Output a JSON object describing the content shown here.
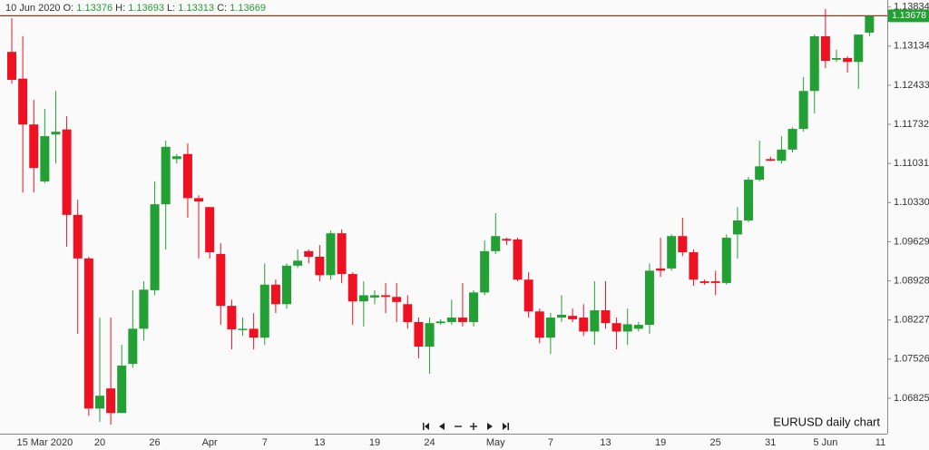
{
  "chart_data": {
    "type": "candlestick",
    "header": {
      "date": "10 Jun 2020",
      "items": [
        {
          "label": "O:",
          "value": 1.13376
        },
        {
          "label": "H:",
          "value": 1.13693
        },
        {
          "label": "L:",
          "value": 1.13313
        },
        {
          "label": "C:",
          "value": 1.13669
        }
      ]
    },
    "footnote": "EURUSD daily chart",
    "current_price": 1.13678,
    "up_color": "#22a033",
    "down_color": "#ee1122",
    "price_line_color": "#8b3a1a",
    "ylim": [
      1.0619,
      1.1396
    ],
    "yticks": [
      1.13834,
      1.13134,
      1.12433,
      1.11732,
      1.11031,
      {
        "value": 1.1033,
        "label": "1.10330"
      },
      1.09629,
      1.08928,
      1.08227,
      1.07526,
      1.06825
    ],
    "categories": [
      null,
      null,
      null,
      "15 Mar 2020",
      null,
      null,
      null,
      null,
      "20",
      null,
      null,
      null,
      null,
      "26",
      null,
      null,
      null,
      null,
      "Apr",
      null,
      null,
      null,
      null,
      "7",
      null,
      null,
      null,
      null,
      "13",
      null,
      null,
      null,
      null,
      "19",
      null,
      null,
      null,
      null,
      "24",
      null,
      null,
      null,
      null,
      null,
      "May",
      null,
      null,
      null,
      null,
      "7",
      null,
      null,
      null,
      null,
      "13",
      null,
      null,
      null,
      null,
      "19",
      null,
      null,
      null,
      null,
      "25",
      null,
      null,
      null,
      null,
      "31",
      null,
      null,
      null,
      null,
      "5 Jun",
      null,
      null,
      null,
      null,
      "11"
    ],
    "open": [
      1.1303,
      1.1255,
      1.1173,
      1.1071,
      1.1155,
      1.1164,
      1.1011,
      1.0933,
      1.0664,
      1.07,
      1.0656,
      1.0744,
      1.0807,
      1.0876,
      1.103,
      1.1111,
      1.112,
      1.1041,
      1.1025,
      1.0941,
      1.0848,
      1.0806,
      1.0807,
      1.0791,
      1.0886,
      1.0851,
      1.092,
      1.0946,
      1.0936,
      1.0903,
      1.0978,
      1.0905,
      1.0856,
      1.0863,
      1.0867,
      1.0864,
      1.0851,
      1.0819,
      1.0775,
      1.0817,
      1.0819,
      1.0827,
      1.0819,
      1.0872,
      1.0946,
      1.0968,
      1.0967,
      1.0895,
      1.0838,
      1.0791,
      1.0827,
      1.083,
      1.0827,
      1.0802,
      1.084,
      1.0817,
      1.0802,
      1.0807,
      1.0814,
      1.0915,
      1.0915,
      1.0973,
      1.0944,
      1.0892,
      1.0892,
      1.0889,
      1.0976,
      1.1001,
      1.1074,
      1.1111,
      1.1108,
      1.1128,
      1.1165,
      1.1233,
      1.1331,
      1.1289,
      1.1292,
      1.1285,
      1.13376,
      null
    ],
    "high": [
      1.1363,
      1.1331,
      1.1217,
      1.1201,
      1.1233,
      1.1188,
      1.1038,
      1.0936,
      1.0827,
      1.0827,
      1.0778,
      1.0876,
      1.0892,
      1.1071,
      1.1144,
      1.112,
      1.1139,
      1.1046,
      1.1025,
      1.096,
      1.0859,
      1.0827,
      1.0835,
      1.0924,
      1.0895,
      1.0924,
      1.0949,
      1.0949,
      1.0957,
      1.0983,
      1.0985,
      1.0908,
      1.0892,
      1.0876,
      1.0889,
      1.0889,
      1.0867,
      1.0827,
      1.0827,
      1.0824,
      1.0859,
      1.0889,
      1.0876,
      1.0965,
      1.1014,
      1.097,
      1.097,
      1.0908,
      1.0843,
      1.0835,
      1.0867,
      1.0843,
      1.0851,
      1.0892,
      1.0892,
      1.0827,
      1.0843,
      1.0819,
      1.0924,
      1.097,
      1.0976,
      1.1006,
      1.0949,
      1.0895,
      1.0911,
      1.0976,
      1.1025,
      1.1079,
      1.1144,
      1.1115,
      1.1152,
      1.1168,
      1.1258,
      1.1334,
      1.138,
      1.1307,
      1.1295,
      1.1334,
      1.13693,
      null
    ],
    "low": [
      1.1246,
      1.1051,
      1.1051,
      1.1068,
      1.1103,
      1.0954,
      1.0798,
      1.0651,
      1.064,
      1.0635,
      1.0656,
      1.0737,
      1.0786,
      1.0867,
      1.0949,
      1.1103,
      1.1006,
      1.0933,
      1.0933,
      1.0814,
      1.077,
      1.0794,
      1.077,
      1.0778,
      1.0835,
      1.0843,
      1.0916,
      1.0924,
      1.0892,
      1.0895,
      1.0889,
      1.0814,
      1.0811,
      1.0851,
      1.0835,
      1.0819,
      1.0807,
      1.0754,
      1.0726,
      1.0814,
      1.0814,
      1.0811,
      1.0811,
      1.0867,
      1.0941,
      1.0957,
      1.0892,
      1.0827,
      1.0781,
      1.0762,
      1.0819,
      1.0819,
      1.0794,
      1.0778,
      1.0807,
      1.077,
      1.0778,
      1.0802,
      1.0798,
      1.09,
      1.0911,
      1.0937,
      1.0884,
      1.0886,
      1.0867,
      1.0886,
      1.0933,
      1.0998,
      1.1071,
      1.1107,
      1.1103,
      1.1123,
      1.116,
      1.1193,
      1.1274,
      1.1285,
      1.1266,
      1.1237,
      1.13313,
      null
    ],
    "close": [
      1.1253,
      1.1173,
      1.1095,
      1.1152,
      1.116,
      1.1011,
      1.0933,
      1.0664,
      1.0687,
      1.0656,
      1.0741,
      1.0807,
      1.0877,
      1.103,
      1.1133,
      1.1116,
      1.1041,
      1.1035,
      1.0944,
      1.0848,
      1.0806,
      1.0807,
      1.0791,
      1.0886,
      1.0851,
      1.092,
      1.0929,
      1.0936,
      1.0903,
      1.0978,
      1.0905,
      1.0856,
      1.0867,
      1.0867,
      1.0864,
      1.0855,
      1.0819,
      1.0775,
      1.0817,
      1.082,
      1.0827,
      1.0819,
      1.0872,
      1.0946,
      1.0973,
      1.0965,
      1.0895,
      1.0838,
      1.0791,
      1.0827,
      1.0832,
      1.0824,
      1.0802,
      1.084,
      1.0817,
      1.0802,
      1.0815,
      1.0814,
      1.0911,
      1.0911,
      1.0973,
      1.0944,
      1.0895,
      1.0889,
      1.0889,
      1.097,
      1.1001,
      1.1074,
      1.1098,
      1.1108,
      1.1128,
      1.1165,
      1.1233,
      1.1331,
      1.1287,
      1.1292,
      1.1285,
      1.1334,
      1.13669,
      null
    ]
  }
}
